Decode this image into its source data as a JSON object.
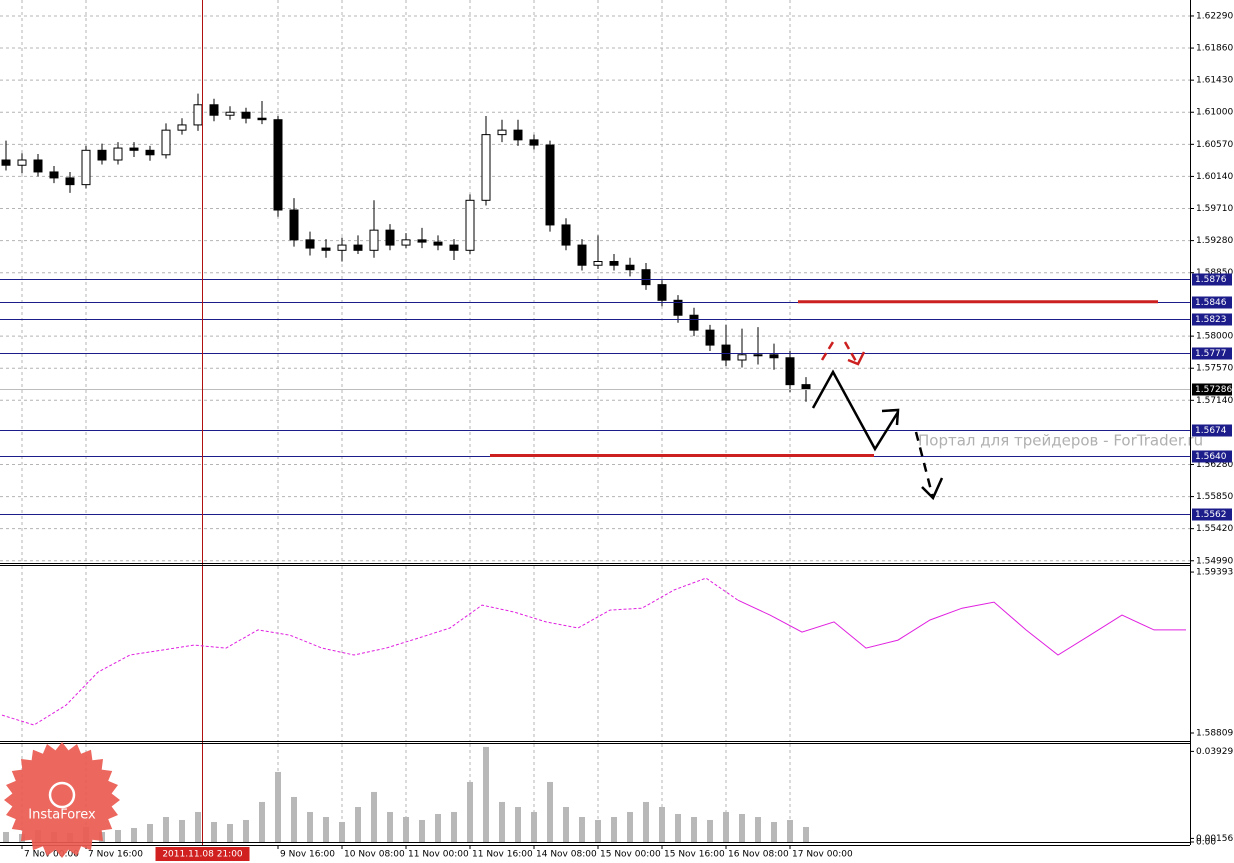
{
  "chart_data": [
    {
      "type": "candlestick",
      "x": [
        -4,
        0,
        4,
        8,
        12,
        16,
        20,
        24,
        28,
        32,
        36,
        40,
        44,
        48,
        52,
        56,
        60,
        64,
        68,
        72,
        76,
        80,
        84,
        88,
        92,
        96,
        100,
        104,
        108,
        112,
        116,
        120,
        124,
        128,
        132,
        136,
        140,
        144,
        148,
        152,
        156,
        160,
        164,
        168,
        172,
        176,
        180,
        184,
        188,
        192,
        196
      ],
      "open": [
        1.6036,
        1.6029,
        1.6036,
        1.602,
        1.6012,
        1.6003,
        1.6049,
        1.6036,
        1.6052,
        1.6049,
        1.6043,
        1.6076,
        1.6083,
        1.611,
        1.6096,
        1.61,
        1.6092,
        1.609,
        1.5969,
        1.5929,
        1.5918,
        1.5915,
        1.5922,
        1.5915,
        1.5942,
        1.5922,
        1.5929,
        1.5926,
        1.5922,
        1.5915,
        1.5982,
        1.607,
        1.6076,
        1.6063,
        1.6056,
        1.5949,
        1.5922,
        1.5895,
        1.59,
        1.5895,
        1.5889,
        1.5869,
        1.5848,
        1.5828,
        1.5808,
        1.5788,
        1.5768,
        1.5775,
        1.5775,
        1.5771,
        1.5735
      ],
      "high": [
        1.6062,
        1.6045,
        1.6044,
        1.6028,
        1.602,
        1.6055,
        1.6058,
        1.606,
        1.606,
        1.6055,
        1.6085,
        1.6092,
        1.6125,
        1.6118,
        1.6108,
        1.6106,
        1.6115,
        1.6095,
        1.5985,
        1.594,
        1.593,
        1.5932,
        1.5935,
        1.5982,
        1.595,
        1.5938,
        1.5945,
        1.5935,
        1.593,
        1.599,
        1.6095,
        1.609,
        1.609,
        1.607,
        1.6062,
        1.5958,
        1.593,
        1.5935,
        1.591,
        1.5905,
        1.5898,
        1.5875,
        1.5855,
        1.5838,
        1.5815,
        1.5815,
        1.581,
        1.5812,
        1.579,
        1.578,
        1.5745
      ],
      "low": [
        1.6022,
        1.6018,
        1.6014,
        1.6005,
        1.5992,
        1.5998,
        1.603,
        1.603,
        1.604,
        1.6035,
        1.6038,
        1.607,
        1.6075,
        1.6088,
        1.609,
        1.6085,
        1.6084,
        1.596,
        1.592,
        1.5908,
        1.5905,
        1.59,
        1.591,
        1.5905,
        1.5915,
        1.5918,
        1.5918,
        1.5915,
        1.5902,
        1.591,
        1.5975,
        1.606,
        1.6055,
        1.605,
        1.594,
        1.5915,
        1.5888,
        1.589,
        1.5888,
        1.588,
        1.5862,
        1.584,
        1.5818,
        1.58,
        1.578,
        1.576,
        1.5758,
        1.5762,
        1.5755,
        1.5725,
        1.5712
      ],
      "close": [
        1.6029,
        1.6036,
        1.602,
        1.6012,
        1.6003,
        1.6049,
        1.6036,
        1.6052,
        1.6049,
        1.6043,
        1.6076,
        1.6083,
        1.611,
        1.6096,
        1.61,
        1.6092,
        1.609,
        1.5969,
        1.5929,
        1.5918,
        1.5915,
        1.5922,
        1.5915,
        1.5942,
        1.5922,
        1.5929,
        1.5926,
        1.5922,
        1.5915,
        1.5982,
        1.607,
        1.6076,
        1.6063,
        1.6056,
        1.5949,
        1.5922,
        1.5895,
        1.59,
        1.5895,
        1.5889,
        1.5869,
        1.5848,
        1.5828,
        1.5808,
        1.5788,
        1.5768,
        1.5775,
        1.5775,
        1.5771,
        1.5735,
        1.5729
      ],
      "up_color": "#ffffff",
      "down_color": "#000000",
      "wick_color": "#000000",
      "xlim": [
        -5.5,
        292
      ],
      "xticks": [
        {
          "value": 0,
          "label": "7 Nov 00:00"
        },
        {
          "value": 16,
          "label": "7 Nov 16:00"
        },
        {
          "value": 64,
          "label": "9 Nov 16:00"
        },
        {
          "value": 80,
          "label": "10 Nov 08:00"
        },
        {
          "value": 96,
          "label": "11 Nov 00:00"
        },
        {
          "value": 112,
          "label": "11 Nov 16:00"
        },
        {
          "value": 128,
          "label": "14 Nov 08:00"
        },
        {
          "value": 144,
          "label": "15 Nov 00:00"
        },
        {
          "value": 160,
          "label": "15 Nov 16:00"
        },
        {
          "value": 176,
          "label": "16 Nov 08:00"
        },
        {
          "value": 192,
          "label": "17 Nov 00:00"
        }
      ],
      "ylim": [
        1.5496,
        1.62504
      ],
      "yticks": [
        {
          "value": 1.6229,
          "label": "1.62290"
        },
        {
          "value": 1.6186,
          "label": "1.61860"
        },
        {
          "value": 1.6143,
          "label": "1.61430"
        },
        {
          "value": 1.61,
          "label": "1.61000"
        },
        {
          "value": 1.6057,
          "label": "1.60570"
        },
        {
          "value": 1.6014,
          "label": "1.60140"
        },
        {
          "value": 1.5971,
          "label": "1.59710"
        },
        {
          "value": 1.5928,
          "label": "1.59280"
        },
        {
          "value": 1.5885,
          "label": "1.58850"
        },
        {
          "value": 1.58,
          "label": "1.58000"
        },
        {
          "value": 1.5757,
          "label": "1.57570"
        },
        {
          "value": 1.5714,
          "label": "1.57140"
        },
        {
          "value": 1.5628,
          "label": "1.56280"
        },
        {
          "value": 1.5585,
          "label": "1.55850"
        },
        {
          "value": 1.5542,
          "label": "1.55420"
        },
        {
          "value": 1.5499,
          "label": "1.54990"
        }
      ],
      "grid": true,
      "levels": [
        1.5876,
        1.5846,
        1.5823,
        1.5777,
        1.5674,
        {
          "value": 1.564,
          "label": "1.5640"
        },
        1.5562
      ],
      "level_color": "#1c1c8a",
      "last": 1.57286,
      "red_lines": [
        {
          "value": 1.5846,
          "x": [
            194,
            284
          ]
        },
        {
          "value": 1.564,
          "x": [
            117,
            213
          ]
        }
      ],
      "red_color": "#cc2020",
      "crosshair": {
        "x": 45,
        "label": "2011.11.08 21:00"
      }
    },
    {
      "type": "line",
      "x": [
        -5,
        3,
        11,
        19,
        27,
        35,
        43,
        51,
        59,
        67,
        75,
        83,
        91,
        99,
        107,
        115,
        123,
        131,
        139,
        147,
        155,
        163,
        171,
        179,
        187,
        195,
        203,
        211,
        219,
        227,
        235,
        243,
        251,
        259,
        267,
        275,
        283,
        291
      ],
      "series": [
        {
          "color": "#e020e0",
          "style": "dashed",
          "values": [
            1.58874,
            1.58838,
            1.5891,
            1.5903,
            1.59092,
            1.5911,
            1.59128,
            1.59117,
            1.59183,
            1.59164,
            1.59117,
            1.59092,
            1.59117,
            1.59153,
            1.5919,
            1.59273,
            1.59248,
            1.59212,
            1.5919,
            1.59255,
            1.59262,
            1.59328,
            1.59371,
            1.59291,
            null,
            null,
            null,
            null,
            null,
            null,
            null,
            null,
            null,
            null,
            null,
            null,
            null,
            null
          ]
        },
        {
          "color": "#e020e0",
          "style": "solid",
          "values": [
            null,
            null,
            null,
            null,
            null,
            null,
            null,
            null,
            null,
            null,
            null,
            null,
            null,
            null,
            null,
            null,
            null,
            null,
            null,
            null,
            null,
            null,
            null,
            1.59291,
            1.59237,
            1.59175,
            1.59212,
            1.59117,
            1.59146,
            1.59219,
            1.59262,
            1.59284,
            1.59183,
            1.59092,
            1.59164,
            1.59237,
            1.59183,
            1.59183
          ]
        }
      ],
      "ylim": [
        1.5878,
        1.59415
      ],
      "yticks": [
        1.59393,
        1.58809
      ]
    },
    {
      "type": "bar",
      "x": [
        -4,
        0,
        4,
        8,
        12,
        16,
        20,
        24,
        28,
        32,
        36,
        40,
        44,
        48,
        52,
        56,
        60,
        64,
        68,
        72,
        76,
        80,
        84,
        88,
        92,
        96,
        100,
        104,
        108,
        112,
        116,
        120,
        124,
        128,
        132,
        136,
        140,
        144,
        148,
        152,
        156,
        160,
        164,
        168,
        172,
        176,
        180,
        184,
        188,
        192,
        196
      ],
      "values": [
        0.00434,
        0.00347,
        0.00521,
        0.00434,
        0.00391,
        0.00651,
        0.00434,
        0.00521,
        0.00608,
        0.00781,
        0.01085,
        0.00955,
        0.01302,
        0.00868,
        0.00781,
        0.00955,
        0.01736,
        0.03038,
        0.01953,
        0.01302,
        0.01085,
        0.00868,
        0.01519,
        0.0217,
        0.01302,
        0.01085,
        0.00955,
        0.01215,
        0.01302,
        0.02604,
        0.04123,
        0.01736,
        0.01519,
        0.01302,
        0.02604,
        0.01519,
        0.01085,
        0.00955,
        0.01085,
        0.01302,
        0.01736,
        0.01519,
        0.01215,
        0.01085,
        0.00955,
        0.01302,
        0.01215,
        0.01085,
        0.00868,
        0.00955,
        0.00651
      ],
      "color": "#b8b8b8",
      "ylim": [
        0,
        0.0425
      ],
      "yticks": [
        0.03929,
        0.00156,
        {
          "value": 0,
          "label": "0.00"
        }
      ]
    }
  ],
  "watermark": "Портал для трейдеров - ForTrader.ru",
  "logo": "InstaForex"
}
